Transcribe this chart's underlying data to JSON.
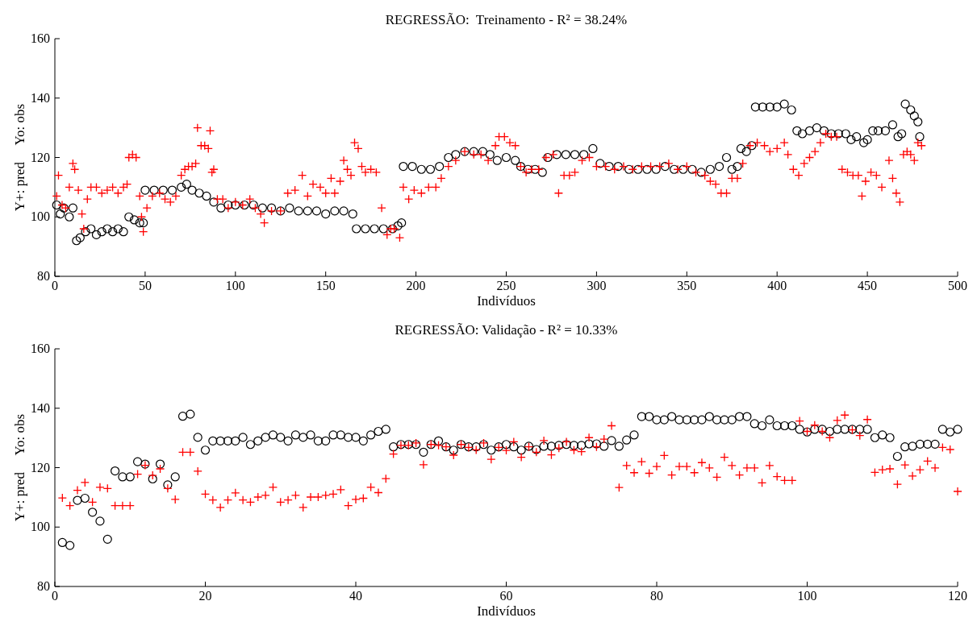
{
  "chart_data": [
    {
      "type": "scatter",
      "title": "REGRESSÃO:  Treinamento - R² = 38.24%",
      "xlabel": "Indivíduos",
      "ylabel": "Y+: pred     Yo: obs",
      "xlim": [
        0,
        500
      ],
      "xticks": [
        0,
        50,
        100,
        150,
        200,
        250,
        300,
        350,
        400,
        450,
        500
      ],
      "ylim": [
        80,
        160
      ],
      "yticks": [
        80,
        100,
        120,
        140,
        160
      ],
      "grid": false,
      "series": [
        {
          "color": "#000000",
          "marker": "circle",
          "x": [
            1,
            3,
            5,
            8,
            10,
            12,
            14,
            17,
            20,
            23,
            26,
            29,
            32,
            35,
            38,
            41,
            44,
            47,
            49,
            50,
            55,
            60,
            65,
            70,
            73,
            76,
            80,
            84,
            88,
            92,
            96,
            100,
            105,
            110,
            115,
            120,
            125,
            130,
            135,
            140,
            145,
            150,
            155,
            160,
            165,
            167,
            172,
            177,
            182,
            187,
            190,
            192,
            193,
            198,
            203,
            208,
            213,
            218,
            222,
            227,
            232,
            237,
            241,
            245,
            250,
            255,
            258,
            262,
            266,
            270,
            273,
            278,
            283,
            288,
            293,
            298,
            302,
            307,
            312,
            318,
            323,
            328,
            333,
            338,
            343,
            348,
            353,
            358,
            363,
            368,
            372,
            375,
            378,
            380,
            383,
            386,
            388,
            392,
            396,
            400,
            404,
            408,
            411,
            414,
            418,
            422,
            426,
            430,
            434,
            438,
            441,
            444,
            448,
            450,
            453,
            456,
            460,
            464,
            467,
            469,
            471,
            474,
            476,
            478,
            479
          ],
          "values": [
            104,
            101,
            103,
            100,
            103,
            92,
            93,
            95,
            96,
            94,
            95,
            96,
            95,
            96,
            95,
            100,
            99,
            98,
            98,
            109,
            109,
            109,
            109,
            110,
            111,
            109,
            108,
            107,
            105,
            103,
            104,
            104,
            104,
            104,
            103,
            103,
            102,
            103,
            102,
            102,
            102,
            101,
            102,
            102,
            101,
            96,
            96,
            96,
            96,
            96,
            97,
            98,
            117,
            117,
            116,
            116,
            117,
            120,
            121,
            122,
            122,
            122,
            121,
            119,
            120,
            119,
            117,
            116,
            116,
            115,
            120,
            121,
            121,
            121,
            121,
            123,
            118,
            117,
            117,
            116,
            116,
            116,
            116,
            117,
            116,
            116,
            116,
            115,
            116,
            117,
            120,
            116,
            117,
            123,
            122,
            124,
            137,
            137,
            137,
            137,
            138,
            136,
            129,
            128,
            129,
            130,
            129,
            128,
            128,
            128,
            126,
            127,
            125,
            126,
            129,
            129,
            129,
            131,
            127,
            128,
            138,
            136,
            134,
            132,
            127
          ]
        },
        {
          "color": "#ff0000",
          "marker": "cross",
          "x": [
            1,
            2,
            4,
            6,
            8,
            10,
            11,
            13,
            15,
            16,
            18,
            20,
            23,
            26,
            29,
            32,
            35,
            38,
            40,
            41,
            43,
            45,
            47,
            48,
            49,
            51,
            54,
            58,
            61,
            64,
            67,
            70,
            72,
            74,
            76,
            78,
            79,
            81,
            83,
            85,
            86,
            87,
            88,
            90,
            93,
            96,
            100,
            104,
            108,
            111,
            114,
            116,
            120,
            125,
            129,
            133,
            137,
            140,
            143,
            147,
            150,
            153,
            155,
            158,
            160,
            162,
            164,
            166,
            168,
            170,
            172,
            175,
            178,
            181,
            184,
            186,
            188,
            191,
            193,
            196,
            199,
            203,
            207,
            211,
            214,
            218,
            222,
            227,
            232,
            236,
            240,
            244,
            246,
            249,
            252,
            255,
            258,
            261,
            264,
            268,
            272,
            276,
            279,
            282,
            285,
            288,
            292,
            296,
            300,
            305,
            310,
            315,
            320,
            325,
            330,
            335,
            340,
            345,
            350,
            355,
            360,
            363,
            366,
            369,
            372,
            375,
            378,
            381,
            385,
            389,
            393,
            396,
            400,
            404,
            406,
            409,
            412,
            415,
            418,
            421,
            424,
            427,
            430,
            433,
            436,
            439,
            442,
            445,
            447,
            449,
            452,
            455,
            458,
            462,
            464,
            466,
            468,
            470,
            472,
            474,
            476,
            478,
            480
          ],
          "values": [
            107,
            114,
            104,
            103,
            110,
            118,
            116,
            109,
            101,
            96,
            106,
            110,
            110,
            108,
            109,
            110,
            108,
            110,
            111,
            120,
            121,
            120,
            107,
            100,
            95,
            103,
            107,
            108,
            106,
            105,
            107,
            114,
            116,
            117,
            117,
            118,
            130,
            124,
            124,
            123,
            129,
            115,
            116,
            106,
            106,
            103,
            105,
            104,
            106,
            103,
            101,
            98,
            102,
            102,
            108,
            109,
            114,
            107,
            111,
            110,
            108,
            113,
            108,
            112,
            119,
            116,
            114,
            125,
            123,
            117,
            115,
            116,
            115,
            103,
            94,
            96,
            96,
            93,
            110,
            106,
            109,
            108,
            110,
            110,
            113,
            117,
            119,
            122,
            121,
            121,
            119,
            124,
            127,
            127,
            125,
            124,
            117,
            115,
            116,
            116,
            120,
            121,
            108,
            114,
            114,
            115,
            119,
            120,
            117,
            117,
            116,
            117,
            116,
            117,
            117,
            117,
            118,
            116,
            117,
            115,
            114,
            112,
            111,
            108,
            108,
            113,
            113,
            118,
            124,
            125,
            124,
            122,
            123,
            125,
            121,
            116,
            114,
            118,
            120,
            122,
            125,
            128,
            127,
            127,
            116,
            115,
            114,
            114,
            107,
            112,
            115,
            114,
            110,
            119,
            113,
            108,
            105,
            121,
            122,
            121,
            119,
            125,
            124
          ]
        }
      ]
    },
    {
      "type": "scatter",
      "title": "REGRESSÃO: Validação - R² = 10.33%",
      "xlabel": "Indivíduos",
      "ylabel": "Y+: pred     Yo: obs",
      "xlim": [
        0,
        120
      ],
      "xticks": [
        0,
        20,
        40,
        60,
        80,
        100,
        120
      ],
      "ylim": [
        80,
        160
      ],
      "yticks": [
        80,
        100,
        120,
        140,
        160
      ],
      "grid": false,
      "series": [
        {
          "color": "#000000",
          "marker": "circle",
          "x": [
            1,
            2,
            3,
            4,
            5,
            6,
            7,
            8,
            9,
            10,
            11,
            12,
            13,
            14,
            15,
            16,
            17,
            18,
            19,
            20,
            21,
            22,
            23,
            24,
            25,
            26,
            27,
            28,
            29,
            30,
            31,
            32,
            33,
            34,
            35,
            36,
            37,
            38,
            39,
            40,
            41,
            42,
            43,
            44,
            45,
            46,
            47,
            48,
            49,
            50,
            51,
            52,
            53,
            54,
            55,
            56,
            57,
            58,
            59,
            60,
            61,
            62,
            63,
            64,
            65,
            66,
            67,
            68,
            69,
            70,
            71,
            72,
            73,
            74,
            75,
            76,
            77,
            78,
            79,
            80,
            81,
            82,
            83,
            84,
            85,
            86,
            87,
            88,
            89,
            90,
            91,
            92,
            93,
            94,
            95,
            96,
            97,
            98,
            99,
            100,
            101,
            102,
            103,
            104,
            105,
            106,
            107,
            108,
            109,
            110,
            111,
            112,
            113,
            114,
            115,
            116,
            117,
            118,
            119,
            120
          ],
          "values": [
            94.8,
            93.8,
            109,
            109.7,
            105,
            102,
            95.9,
            118.9,
            116.9,
            116.9,
            122,
            121.2,
            116.2,
            121.2,
            114.2,
            116.9,
            137.3,
            138,
            130.2,
            125.9,
            129,
            129,
            129,
            129,
            130.2,
            127.8,
            129,
            130.2,
            131,
            130.2,
            129,
            131,
            130.2,
            131,
            129,
            129,
            131,
            131,
            130.2,
            130.2,
            129,
            131,
            132.2,
            132.9,
            127,
            127.8,
            127.8,
            127.8,
            125.2,
            127.8,
            129,
            127,
            125.9,
            127.8,
            127,
            127,
            127.8,
            125.9,
            127,
            127.8,
            127,
            125.9,
            127.2,
            126.1,
            127.2,
            127.2,
            127.5,
            127.8,
            127.5,
            127.5,
            128,
            128,
            127.2,
            129.1,
            127.2,
            129.3,
            131,
            137.2,
            137.2,
            136.1,
            136.1,
            137.2,
            136.1,
            136.1,
            136.1,
            136.1,
            137.2,
            136.1,
            136.1,
            136.1,
            137.2,
            137.2,
            134.8,
            134.1,
            136.1,
            134.1,
            134.1,
            134.1,
            132.9,
            132,
            132.9,
            132.9,
            132.2,
            132.9,
            132.9,
            132.9,
            132.9,
            132.9,
            130.1,
            131,
            130.1,
            123.8,
            127,
            127.2,
            127.9,
            127.9,
            127.9,
            132.9,
            132,
            132.9
          ]
        },
        {
          "color": "#ff0000",
          "marker": "cross",
          "x": [
            1,
            2,
            3,
            4,
            5,
            6,
            7,
            8,
            9,
            10,
            11,
            12,
            13,
            14,
            15,
            16,
            17,
            18,
            19,
            20,
            21,
            22,
            23,
            24,
            25,
            26,
            27,
            28,
            29,
            30,
            31,
            32,
            33,
            34,
            35,
            36,
            37,
            38,
            39,
            40,
            41,
            42,
            43,
            44,
            45,
            46,
            47,
            48,
            49,
            50,
            51,
            52,
            53,
            54,
            55,
            56,
            57,
            58,
            59,
            60,
            61,
            62,
            63,
            64,
            65,
            66,
            67,
            68,
            69,
            70,
            71,
            72,
            73,
            74,
            75,
            76,
            77,
            78,
            79,
            80,
            81,
            82,
            83,
            84,
            85,
            86,
            87,
            88,
            89,
            90,
            91,
            92,
            93,
            94,
            95,
            96,
            97,
            98,
            99,
            100,
            101,
            102,
            103,
            104,
            105,
            106,
            107,
            108,
            109,
            110,
            111,
            112,
            113,
            114,
            115,
            116,
            117,
            118,
            119,
            120
          ],
          "values": [
            109.8,
            107.2,
            112.4,
            115,
            108.4,
            113.4,
            113,
            107.2,
            107.2,
            107.2,
            117.8,
            120.8,
            117.4,
            119.6,
            113,
            109.3,
            125.2,
            125.2,
            118.8,
            111.1,
            109.1,
            106.6,
            109.1,
            111.5,
            109.1,
            108.4,
            110.1,
            110.7,
            113.4,
            108.4,
            109.1,
            110.7,
            106.6,
            110.1,
            110.1,
            110.7,
            111.1,
            112.6,
            107.2,
            109.3,
            109.7,
            113.4,
            111.6,
            116.3,
            124.6,
            127.5,
            127.5,
            128.3,
            121,
            127.8,
            127.5,
            127,
            124.2,
            127.8,
            126.8,
            126,
            128.3,
            122.8,
            126.8,
            125.8,
            128.7,
            123.5,
            127,
            125.2,
            129.1,
            124.3,
            126.6,
            128.7,
            125.9,
            125.4,
            130.1,
            127,
            129.6,
            134.1,
            113.3,
            120.7,
            118.3,
            122,
            118.1,
            120.4,
            124.1,
            117.5,
            120.4,
            120.4,
            118.3,
            121.7,
            119.9,
            116.8,
            123.5,
            120.7,
            117.5,
            119.9,
            119.9,
            114.9,
            120.7,
            117,
            115.7,
            115.7,
            135.7,
            132.2,
            134.3,
            132.2,
            130.1,
            135.9,
            137.7,
            132.7,
            130.8,
            136.2,
            118.4,
            119.3,
            119.6,
            114.4,
            120.9,
            117.2,
            119.3,
            122.2,
            119.9,
            126.8,
            126.1,
            112
          ]
        }
      ]
    }
  ]
}
